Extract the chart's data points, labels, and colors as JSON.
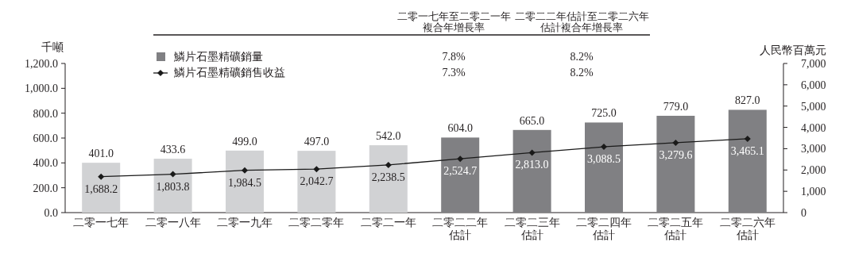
{
  "chart_data": {
    "type": "bar",
    "categories": [
      "二零一七年",
      "二零一八年",
      "二零一九年",
      "二零二零年",
      "二零二一年",
      "二零二二年估計",
      "二零二三年估計",
      "二零二四年估計",
      "二零二五年估計",
      "二零二六年估計"
    ],
    "series": [
      {
        "name": "鱗片石墨精礦銷量",
        "color": "#808083",
        "colors": [
          "#d1d2d4",
          "#d1d2d4",
          "#d1d2d4",
          "#d1d2d4",
          "#d1d2d4",
          "#808083",
          "#808083",
          "#808083",
          "#808083",
          "#808083"
        ],
        "values": [
          401.0,
          433.6,
          499.0,
          497.0,
          542.0,
          604.0,
          665.0,
          725.0,
          779.0,
          827.0
        ],
        "value_labels": [
          "401.0",
          "433.6",
          "499.0",
          "497.0",
          "542.0",
          "604.0",
          "665.0",
          "725.0",
          "779.0",
          "827.0"
        ]
      },
      {
        "name": "鱗片石墨精礦銷售收益",
        "type": "line",
        "axis": "y2",
        "color": "#1a1a1a",
        "values": [
          1688.2,
          1803.8,
          1984.5,
          2042.7,
          2238.5,
          2524.7,
          2813.0,
          3088.5,
          3279.6,
          3465.1
        ],
        "value_labels": [
          "1,688.2",
          "1,803.8",
          "1,984.5",
          "2,042.7",
          "2,238.5",
          "2,524.7",
          "2,813.0",
          "3,088.5",
          "3,279.6",
          "3,465.1"
        ]
      }
    ],
    "ylabel": "千噸",
    "y2label": "人民幣百萬元",
    "ylim": [
      0,
      1200
    ],
    "yticks": [
      {
        "value": 0,
        "label": "0.0"
      },
      {
        "value": 200,
        "label": "200.0"
      },
      {
        "value": 400,
        "label": "400.0"
      },
      {
        "value": 600,
        "label": "600.0"
      },
      {
        "value": 800,
        "label": "800.0"
      },
      {
        "value": 1000,
        "label": "1,000.0"
      },
      {
        "value": 1200,
        "label": "1,200.0"
      }
    ],
    "y2lim": [
      0,
      7000
    ],
    "y2ticks": [
      0,
      {
        "value": 1000,
        "label": "1,000"
      },
      {
        "value": 2000,
        "label": "2,000"
      },
      {
        "value": 3000,
        "label": "3,000"
      },
      {
        "value": 4000,
        "label": "4,000"
      },
      {
        "value": 5000,
        "label": "5,000"
      },
      {
        "value": 6000,
        "label": "6,000"
      },
      {
        "value": 7000,
        "label": "7,000"
      }
    ],
    "annotations": [
      "二零一七年至二零二一年複合年增長率",
      "二零二二年估計至二零二六年估計複合年增長率",
      "7.8%",
      "8.2%",
      "7.3%",
      "8.2%"
    ],
    "legend": "top",
    "marker": "diamond"
  }
}
